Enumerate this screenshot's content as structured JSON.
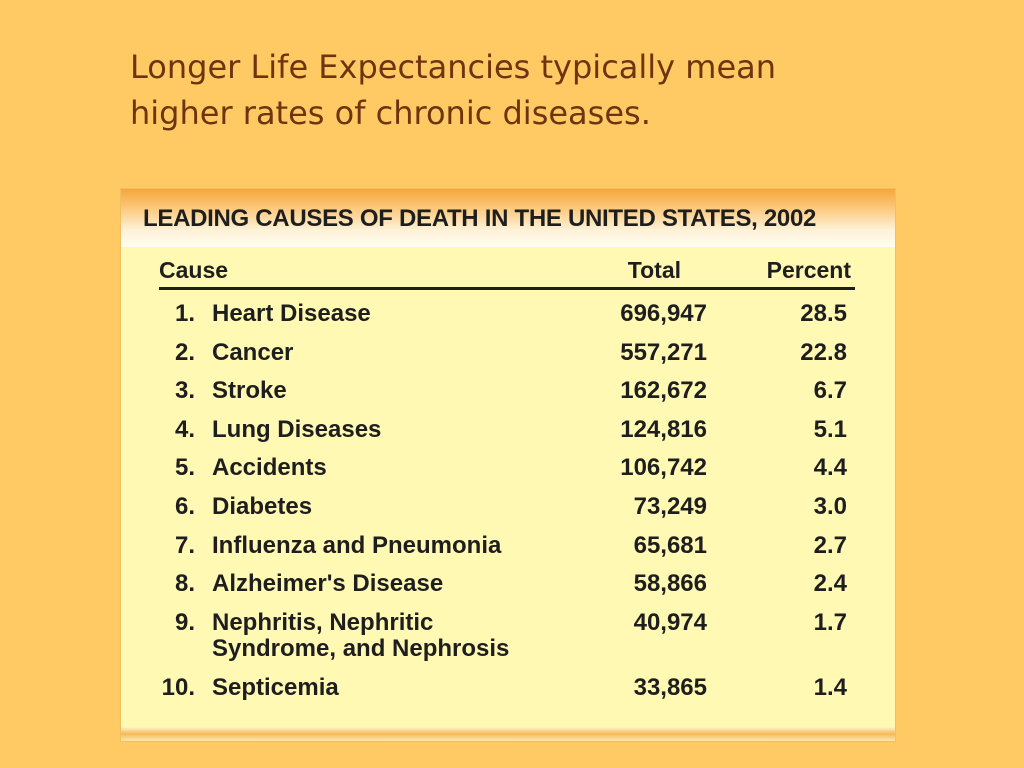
{
  "slide": {
    "title_line1": "Longer Life Expectancies typically mean",
    "title_line2": "higher rates of chronic diseases."
  },
  "table": {
    "heading": "LEADING CAUSES OF DEATH IN THE UNITED STATES, 2002",
    "columns": {
      "cause": "Cause",
      "total": "Total",
      "percent": "Percent"
    },
    "rows": [
      {
        "rank": "1.",
        "cause_line1": "Heart Disease",
        "cause_line2": "",
        "total": "696,947",
        "percent": "28.5"
      },
      {
        "rank": "2.",
        "cause_line1": "Cancer",
        "cause_line2": "",
        "total": "557,271",
        "percent": "22.8"
      },
      {
        "rank": "3.",
        "cause_line1": "Stroke",
        "cause_line2": "",
        "total": "162,672",
        "percent": "6.7"
      },
      {
        "rank": "4.",
        "cause_line1": "Lung Diseases",
        "cause_line2": "",
        "total": "124,816",
        "percent": "5.1"
      },
      {
        "rank": "5.",
        "cause_line1": "Accidents",
        "cause_line2": "",
        "total": "106,742",
        "percent": "4.4"
      },
      {
        "rank": "6.",
        "cause_line1": "Diabetes",
        "cause_line2": "",
        "total": "73,249",
        "percent": "3.0"
      },
      {
        "rank": "7.",
        "cause_line1": "Influenza and Pneumonia",
        "cause_line2": "",
        "total": "65,681",
        "percent": "2.7"
      },
      {
        "rank": "8.",
        "cause_line1": "Alzheimer's Disease",
        "cause_line2": "",
        "total": "58,866",
        "percent": "2.4"
      },
      {
        "rank": "9.",
        "cause_line1": "Nephritis, Nephritic",
        "cause_line2": "Syndrome, and Nephrosis",
        "total": "40,974",
        "percent": "1.7"
      },
      {
        "rank": "10.",
        "cause_line1": "Septicemia",
        "cause_line2": "",
        "total": "33,865",
        "percent": "1.4"
      }
    ]
  }
}
